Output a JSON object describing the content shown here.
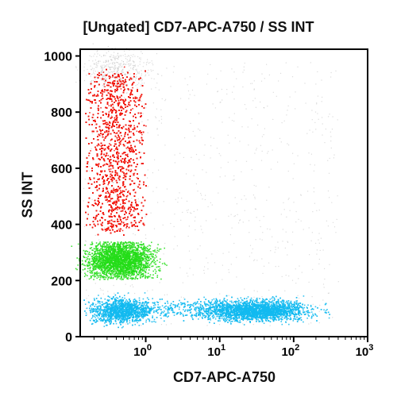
{
  "chart_data": {
    "type": "scatter",
    "title": "[Ungated] CD7-APC-A750 / SS INT",
    "xlabel": "CD7-APC-A750",
    "ylabel": "SS INT",
    "x_scale": "log",
    "xlim": [
      0.13,
      1000
    ],
    "ylim": [
      0,
      1024
    ],
    "x_ticks": [
      {
        "value": 1,
        "base": "10",
        "exp": "0"
      },
      {
        "value": 10,
        "base": "10",
        "exp": "1"
      },
      {
        "value": 100,
        "base": "10",
        "exp": "2"
      },
      {
        "value": 1000,
        "base": "10",
        "exp": "3"
      }
    ],
    "y_ticks": [
      0,
      200,
      400,
      600,
      800,
      1000
    ],
    "grid": false,
    "legend": "none",
    "series": [
      {
        "color": "#f21a10",
        "x_range": [
          0.15,
          1.0
        ],
        "y_range": [
          340,
          960
        ],
        "x_center": 0.4,
        "y_center": 620
      },
      {
        "color": "#23dd18",
        "x_range": [
          0.15,
          1.6
        ],
        "y_range": [
          205,
          340
        ],
        "x_center": 0.45,
        "y_center": 275
      },
      {
        "color": "#12baf0",
        "x_range": [
          0.14,
          250
        ],
        "y_range": [
          45,
          150
        ],
        "x_center": 10,
        "y_center": 95
      }
    ]
  }
}
